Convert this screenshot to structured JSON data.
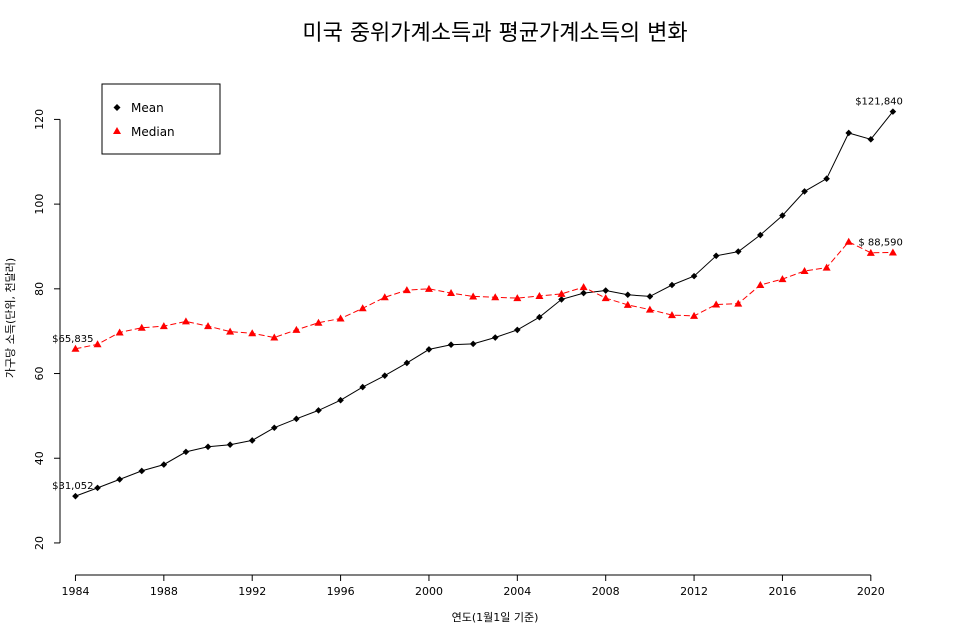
{
  "chart_data": {
    "type": "line",
    "title": "미국 중위가계소득과 평균가계소득의 변화",
    "xlabel": "연도(1월1일 기준)",
    "ylabel": "가구당 소득(단위, 천달러)",
    "xlim": [
      1983.3,
      2022.0
    ],
    "ylim": [
      15.5,
      134.5
    ],
    "x_ticks": [
      1984,
      1988,
      1992,
      1996,
      2000,
      2004,
      2008,
      2012,
      2016,
      2020
    ],
    "y_ticks": [
      20,
      40,
      60,
      80,
      100,
      120
    ],
    "grid": false,
    "legend_position": "top-left",
    "x": [
      1984,
      1985,
      1986,
      1987,
      1988,
      1989,
      1990,
      1991,
      1992,
      1993,
      1994,
      1995,
      1996,
      1997,
      1998,
      1999,
      2000,
      2001,
      2002,
      2003,
      2004,
      2005,
      2006,
      2007,
      2008,
      2009,
      2010,
      2011,
      2012,
      2013,
      2014,
      2015,
      2016,
      2017,
      2018,
      2019,
      2020,
      2021
    ],
    "series": [
      {
        "name": "Mean",
        "color": "#000000",
        "marker": "diamond",
        "line_style": "solid",
        "values": [
          31.05,
          33.0,
          35.0,
          37.0,
          38.5,
          41.5,
          42.7,
          43.2,
          44.2,
          47.2,
          49.3,
          51.3,
          53.7,
          56.8,
          59.5,
          62.5,
          65.7,
          66.8,
          67.0,
          68.5,
          70.3,
          73.3,
          77.5,
          79.0,
          79.6,
          78.6,
          78.2,
          80.9,
          83.0,
          87.8,
          88.8,
          92.7,
          97.3,
          103.0,
          106.0,
          116.8,
          115.3,
          121.84
        ]
      },
      {
        "name": "Median",
        "color": "#ff0000",
        "marker": "triangle",
        "line_style": "dashed",
        "values": [
          65.84,
          66.9,
          69.7,
          70.8,
          71.2,
          72.3,
          71.2,
          69.9,
          69.5,
          68.5,
          70.3,
          72.0,
          73.0,
          75.4,
          78.0,
          79.7,
          80.0,
          79.0,
          78.2,
          78.0,
          77.8,
          78.3,
          78.8,
          80.4,
          77.8,
          76.2,
          75.1,
          73.8,
          73.6,
          76.3,
          76.5,
          80.9,
          82.3,
          84.2,
          85.0,
          91.1,
          88.5,
          88.59
        ]
      }
    ],
    "annotations": [
      {
        "text": "$31,052",
        "x": 1984,
        "y": 31.05,
        "anchor": "end-above"
      },
      {
        "text": "$65,835",
        "x": 1984,
        "y": 65.84,
        "anchor": "end-above"
      },
      {
        "text": "$121,840",
        "x": 2021,
        "y": 121.84,
        "anchor": "end-above"
      },
      {
        "text": "$ 88,590",
        "x": 2021,
        "y": 88.59,
        "anchor": "end-above"
      }
    ]
  }
}
